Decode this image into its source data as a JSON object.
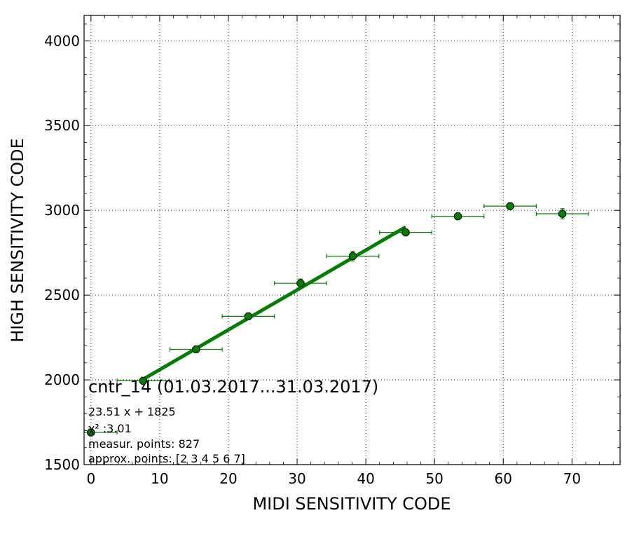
{
  "chart_data": {
    "type": "scatter",
    "xlabel": "MIDI SENSITIVITY CODE",
    "ylabel": "HIGH SENSITIVITY CODE",
    "xlim": [
      -1,
      77
    ],
    "ylim": [
      1500,
      4150
    ],
    "x_ticks": [
      0,
      10,
      20,
      30,
      40,
      50,
      60,
      70
    ],
    "y_ticks": [
      1500,
      2000,
      2500,
      3000,
      3500,
      4000
    ],
    "grid": true,
    "color": "#007f00",
    "series": [
      {
        "points": [
          {
            "x": 0.0,
            "y": 1690,
            "xerr": 3.8,
            "yerr": 8
          },
          {
            "x": 7.6,
            "y": 1995,
            "xerr": 3.8,
            "yerr": 10
          },
          {
            "x": 15.3,
            "y": 2180,
            "xerr": 3.8,
            "yerr": 12
          },
          {
            "x": 22.9,
            "y": 2375,
            "xerr": 3.8,
            "yerr": 18
          },
          {
            "x": 30.5,
            "y": 2570,
            "xerr": 3.8,
            "yerr": 25
          },
          {
            "x": 38.1,
            "y": 2730,
            "xerr": 3.8,
            "yerr": 28
          },
          {
            "x": 45.8,
            "y": 2870,
            "xerr": 3.8,
            "yerr": 18
          },
          {
            "x": 53.4,
            "y": 2965,
            "xerr": 3.8,
            "yerr": 15
          },
          {
            "x": 61.0,
            "y": 3025,
            "xerr": 3.8,
            "yerr": 15
          },
          {
            "x": 68.6,
            "y": 2980,
            "xerr": 3.8,
            "yerr": 30
          }
        ]
      }
    ],
    "fit_line": {
      "x_start": 7.6,
      "x_end": 45.8,
      "slope": 23.51,
      "intercept": 1825
    },
    "annotation": {
      "title": "cntr_14 (01.03.2017...31.03.2017)",
      "equation": "23.51 x + 1825",
      "chi2": "χ² :3.01",
      "measur_points": "measur. points: 827",
      "approx_points": "approx. points: [2 3 4 5 6 7]"
    }
  }
}
